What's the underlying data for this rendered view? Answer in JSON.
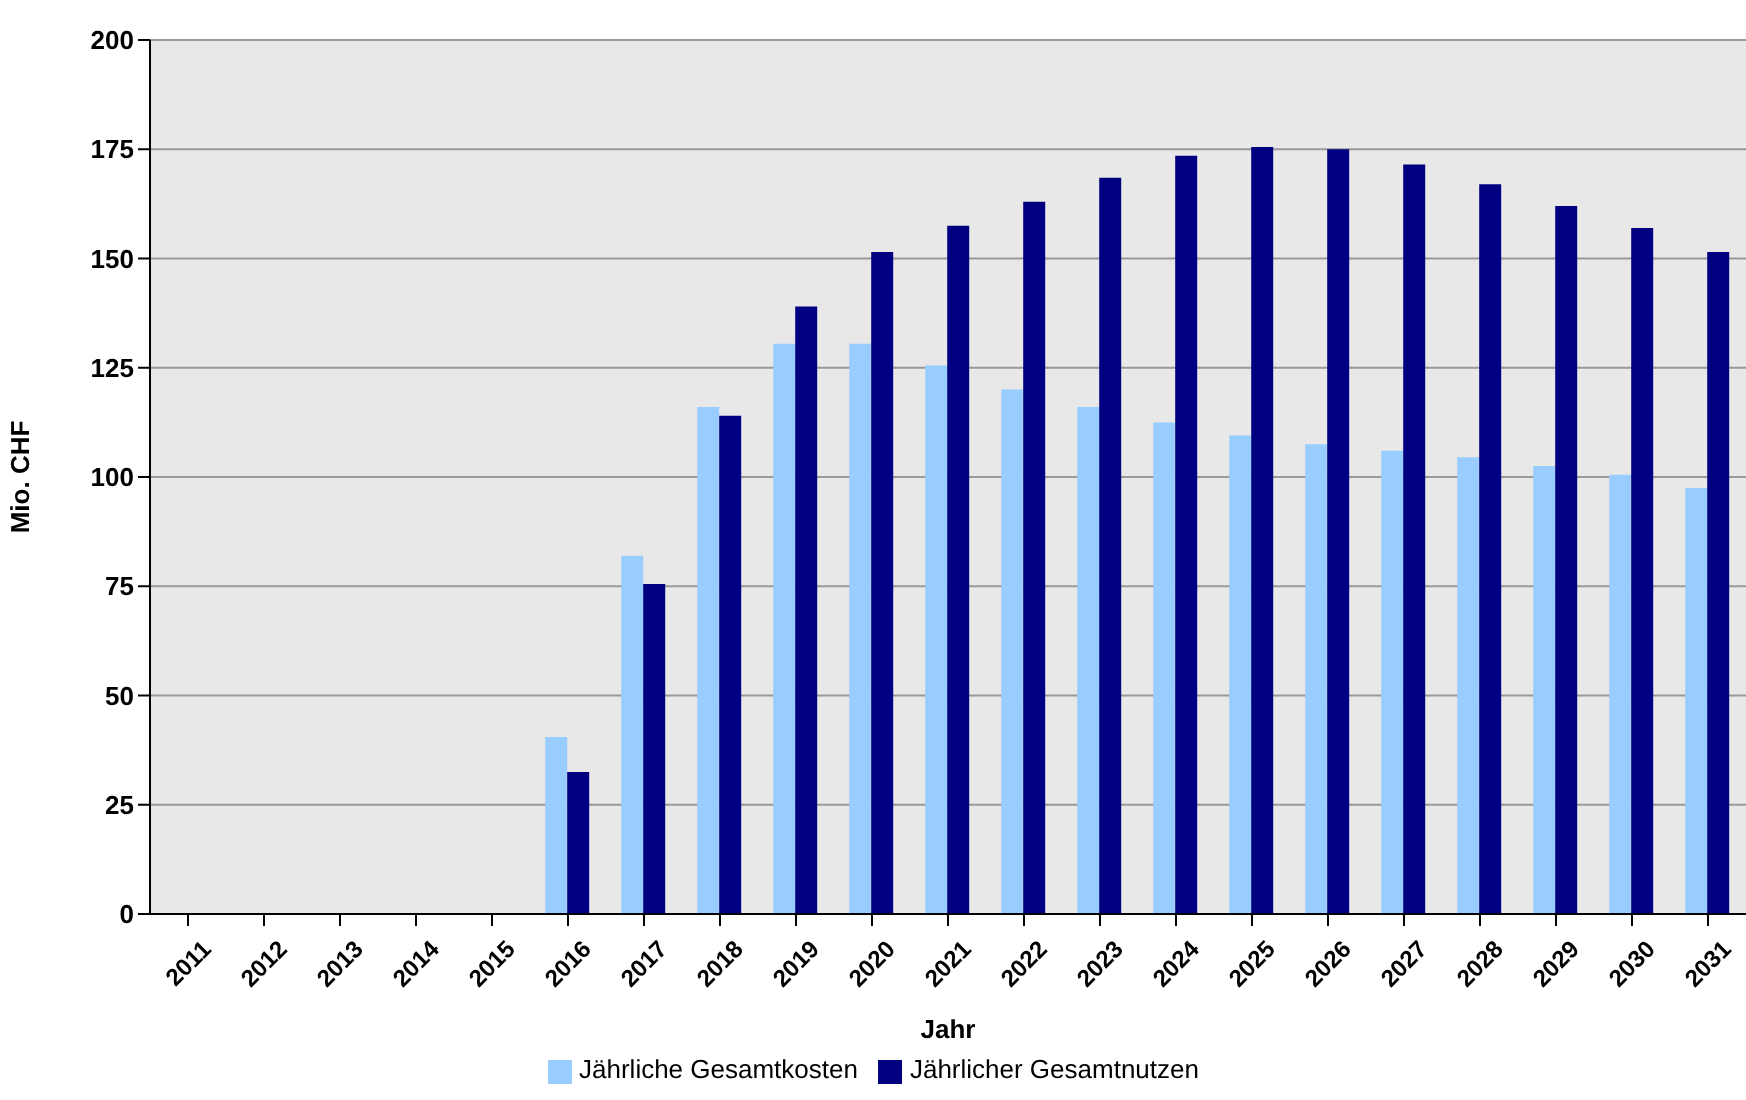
{
  "chart_data": {
    "type": "bar",
    "xlabel": "Jahr",
    "ylabel": "Mio. CHF",
    "categories": [
      "2011",
      "2012",
      "2013",
      "2014",
      "2015",
      "2016",
      "2017",
      "2018",
      "2019",
      "2020",
      "2021",
      "2022",
      "2023",
      "2024",
      "2025",
      "2026",
      "2027",
      "2028",
      "2029",
      "2030",
      "2031"
    ],
    "series": [
      {
        "name": "Jährliche Gesamtkosten",
        "color": "#99ccff",
        "values": [
          0,
          0,
          0,
          0,
          0,
          40.5,
          82,
          116,
          130.5,
          130.5,
          125.5,
          120,
          116,
          112.5,
          109.5,
          107.5,
          106,
          104.5,
          102.5,
          100.5,
          97.5
        ]
      },
      {
        "name": "Jährlicher Gesamtnutzen",
        "color": "#000080",
        "values": [
          0,
          0,
          0,
          0,
          0,
          32.5,
          75.5,
          114,
          139,
          151.5,
          157.5,
          163,
          168.5,
          173.5,
          175.5,
          175,
          171.5,
          167,
          162,
          157,
          151.5
        ]
      }
    ],
    "ylim": [
      0,
      200
    ],
    "yticks": [
      0,
      25,
      50,
      75,
      100,
      125,
      150,
      175,
      200
    ],
    "grid": "y",
    "legend": "bottom"
  }
}
